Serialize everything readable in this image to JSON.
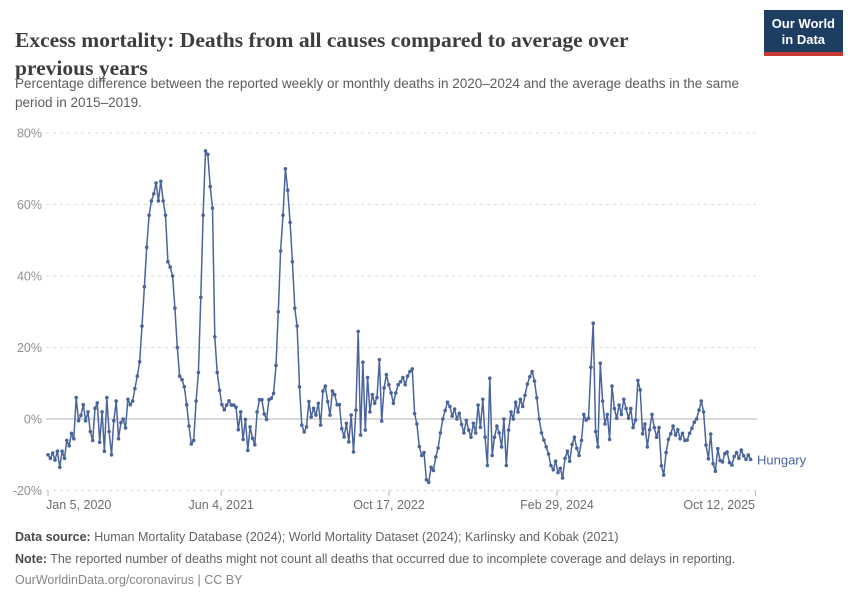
{
  "header": {
    "title_line1": "Excess mortality: Deaths from all causes compared to average over",
    "title_line2": "previous years",
    "subtitle_line1": "Percentage difference between the reported weekly or monthly deaths in 2020–2024 and the average deaths in the same",
    "subtitle_line2": "period in 2015–2019.",
    "logo_line1": "Our World",
    "logo_line2": "in Data"
  },
  "chart_data": {
    "type": "line",
    "title": "Excess mortality: Deaths from all causes compared to average over previous years",
    "unit": "%",
    "ylim": [
      -20,
      80
    ],
    "grid": "dashed-horizontal",
    "legend_position": "end-of-line-label",
    "colors": {
      "line": "#4a649c",
      "grid": "#dcdcdc",
      "zero_line": "#b3b3b3",
      "y_label": "#919191",
      "x_label": "#6e6e6e"
    },
    "y_ticks": [
      {
        "label": "80%",
        "value": 80
      },
      {
        "label": "60%",
        "value": 60
      },
      {
        "label": "40%",
        "value": 40
      },
      {
        "label": "20%",
        "value": 20
      },
      {
        "label": "0%",
        "value": 0
      },
      {
        "label": "-20%",
        "value": -20
      }
    ],
    "x_ticks": [
      {
        "label": "Jan 5, 2020",
        "week": 0,
        "anchor": "start"
      },
      {
        "label": "Jun 4, 2021",
        "week": 73.7,
        "anchor": "middle"
      },
      {
        "label": "Oct 17, 2022",
        "week": 145.1,
        "anchor": "middle"
      },
      {
        "label": "Feb 29, 2024",
        "week": 216.6,
        "anchor": "middle"
      },
      {
        "label": "Oct 12, 2025",
        "week": 301,
        "anchor": "end"
      }
    ],
    "series": [
      {
        "name": "Hungary",
        "color": "#4a649c",
        "cadence": "weekly from Jan 5, 2020",
        "values": [
          -10,
          -11,
          -9.5,
          -11.5,
          -9,
          -13.5,
          -9,
          -11,
          -6,
          -7.5,
          -4,
          -5.5,
          6,
          -0.5,
          1,
          4,
          -0.5,
          2,
          -3.5,
          -6,
          3,
          4.5,
          -6.5,
          2,
          -9,
          6,
          -3.5,
          -10,
          -0.5,
          5,
          -5.5,
          -1,
          0,
          -2.5,
          5.5,
          4,
          5,
          8.5,
          12,
          16,
          26,
          37,
          48,
          57,
          61,
          63,
          66,
          61,
          66.5,
          61,
          57,
          44,
          42.5,
          40,
          31,
          20,
          12,
          11,
          9,
          4,
          -2,
          -7,
          -6,
          5,
          13,
          34,
          57,
          75,
          74,
          65,
          59,
          23,
          13,
          8,
          4,
          2.6,
          3.9,
          5.1,
          3.9,
          3.9,
          3.3,
          -3,
          2,
          -5.7,
          -0.1,
          -8.8,
          -2.2,
          -5.4,
          -7.2,
          2,
          5.4,
          5.4,
          1.4,
          -0.1,
          5.4,
          5.8,
          7.2,
          15,
          30,
          47,
          57,
          70,
          64,
          55,
          44,
          31,
          26,
          9,
          -1.7,
          -3.6,
          -2.2,
          4.9,
          0.6,
          3,
          1.1,
          4.4,
          -1.7,
          7.8,
          9.2,
          4.9,
          1.1,
          7.8,
          6.8,
          4,
          4,
          -2.7,
          -5,
          -1.2,
          -6.4,
          1.1,
          -9.2,
          2.5,
          24.5,
          -4.5,
          15.9,
          -3.1,
          11.6,
          2,
          6.8,
          4.4,
          6,
          16.6,
          -0.6,
          8.7,
          12.4,
          9.6,
          7.3,
          4.4,
          7.3,
          9.6,
          10.4,
          11.6,
          9.6,
          12,
          13.3,
          14,
          1.5,
          -1.4,
          -7.7,
          -10.2,
          -9.4,
          -17,
          -17.7,
          -13.5,
          -14.4,
          -10.6,
          -8.1,
          -3.9,
          0,
          2.4,
          4.7,
          3.5,
          0.8,
          2.8,
          0,
          1.6,
          -1.5,
          -3.9,
          -0.4,
          -3.1,
          -5.1,
          -1.2,
          -3.9,
          3.9,
          -2.3,
          5.5,
          -5.1,
          -13,
          11.4,
          -10.2,
          -5.1,
          -2,
          -3.9,
          -7.8,
          0,
          -13,
          -3.1,
          2,
          0,
          4.7,
          2,
          5.5,
          3.5,
          6.6,
          9.8,
          11.8,
          13.3,
          10.6,
          5.9,
          0,
          -3.9,
          -5.9,
          -7.8,
          -9.8,
          -13,
          -14.2,
          -11.8,
          -15,
          -13.8,
          -16.5,
          -11,
          -9,
          -11.8,
          -7.1,
          -5.1,
          -8.2,
          -10.2,
          -6,
          1.3,
          -0.3,
          0.2,
          14.5,
          26.8,
          -3.5,
          -7.8,
          15.6,
          5,
          -1.4,
          1.3,
          -5.7,
          9.2,
          2.9,
          0.2,
          3.9,
          1.3,
          5.5,
          2.9,
          0.2,
          2.9,
          -2.4,
          -0.3,
          10.8,
          8.1,
          -4.1,
          -1.4,
          -7.8,
          -3,
          1.3,
          -2.4,
          -5.1,
          -2.4,
          -13.1,
          -15.7,
          -9.4,
          -5.7,
          -4.1,
          -2,
          -4.5,
          -3,
          -5.5,
          -4,
          -6,
          -5.9,
          -4,
          -2.6,
          -0.9,
          0,
          2.5,
          5,
          2,
          -7.3,
          -11.1,
          -4.2,
          -12.5,
          -14.6,
          -8.3,
          -11.6,
          -12,
          -9.7,
          -9.2,
          -12.2,
          -12.9,
          -10.5,
          -9.4,
          -11,
          -8.7,
          -10.3,
          -11.3,
          -10.1,
          -11.3
        ]
      }
    ]
  },
  "footer": {
    "datasource_label": "Data source:",
    "datasource_text": "Human Mortality Database (2024); World Mortality Dataset (2024); Karlinsky and Kobak (2021)",
    "note_label": "Note:",
    "note_text": "The reported number of deaths might not count all deaths that occurred due to incomplete coverage and delays in reporting.",
    "link_text": "OurWorldinData.org/coronavirus",
    "separator": "|",
    "license_text": "CC BY"
  }
}
